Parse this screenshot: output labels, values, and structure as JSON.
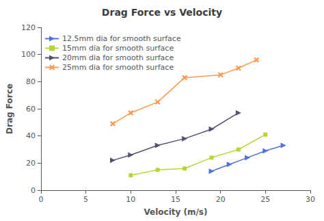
{
  "chart_data": {
    "type": "line",
    "title": "Drag Force vs Velocity",
    "x_label": "Velocity (m/s)",
    "y_label": "Drag Force",
    "xlim": [
      0,
      30
    ],
    "ylim": [
      0,
      120
    ],
    "xticks": [
      0,
      5,
      10,
      15,
      20,
      25,
      30
    ],
    "yticks": [
      0,
      20,
      40,
      60,
      80,
      100,
      120
    ],
    "grid": false,
    "legend": "upper left",
    "series": [
      {
        "name": "12.5mm dia for smooth surface",
        "marker": "triangle-right",
        "x": [
          19,
          21,
          23,
          25,
          27
        ],
        "values": [
          14,
          19,
          24,
          29,
          33
        ]
      },
      {
        "name": "15mm dia for smooth surface",
        "marker": "square",
        "x": [
          10,
          13,
          16,
          19,
          22,
          25
        ],
        "values": [
          11,
          15,
          16,
          24,
          30,
          41
        ]
      },
      {
        "name": "20mm dia for smooth surface",
        "marker": "triangle-right",
        "x": [
          8,
          10,
          13,
          16,
          19,
          22
        ],
        "values": [
          22,
          26,
          33,
          38,
          45,
          57
        ]
      },
      {
        "name": "25mm dia for smooth surface",
        "marker": "x",
        "x": [
          8,
          10,
          13,
          16,
          20,
          22,
          24
        ],
        "values": [
          49,
          57,
          65,
          83,
          85,
          90,
          96
        ]
      }
    ]
  }
}
